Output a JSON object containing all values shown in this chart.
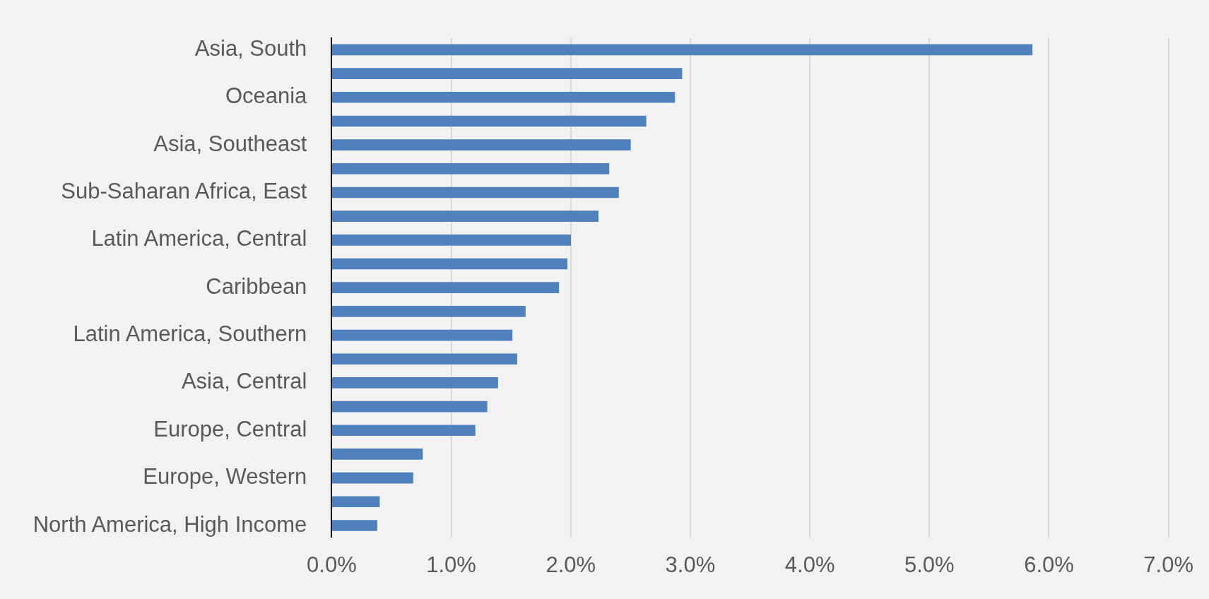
{
  "chart_data": {
    "type": "bar",
    "orientation": "horizontal",
    "categories": [
      "Asia, South",
      null,
      "Oceania",
      null,
      "Asia, Southeast",
      null,
      "Sub-Saharan Africa, East",
      null,
      "Latin America, Central",
      null,
      "Caribbean",
      null,
      "Latin America, Southern",
      null,
      "Asia, Central",
      null,
      "Europe, Central",
      null,
      "Europe, Western",
      null,
      "North America, High Income"
    ],
    "values": [
      5.86,
      2.93,
      2.87,
      2.63,
      2.5,
      2.32,
      2.4,
      2.23,
      2.0,
      1.97,
      1.9,
      1.62,
      1.51,
      1.55,
      1.39,
      1.3,
      1.2,
      0.76,
      0.68,
      0.4,
      0.38
    ],
    "color": "#4f81bd",
    "xlim": [
      0,
      7
    ],
    "xticks": [
      {
        "value": 0,
        "label": "0.0%"
      },
      {
        "value": 1,
        "label": "1.0%"
      },
      {
        "value": 2,
        "label": "2.0%"
      },
      {
        "value": 3,
        "label": "3.0%"
      },
      {
        "value": 4,
        "label": "4.0%"
      },
      {
        "value": 5,
        "label": "5.0%"
      },
      {
        "value": 6,
        "label": "6.0%"
      },
      {
        "value": 7,
        "label": "7.0%"
      }
    ],
    "grid": "x"
  }
}
